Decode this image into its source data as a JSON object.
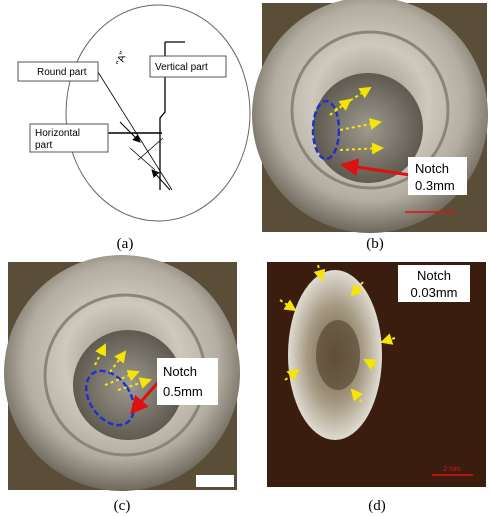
{
  "panels": [
    {
      "caption": "(a)",
      "labels": {
        "round_part": "Round part",
        "vertical_part": "Vertical part",
        "detail": "\"A\"",
        "horizontal_part": [
          "Horizontal",
          "part"
        ]
      }
    },
    {
      "caption": "(b)",
      "notch": [
        "Notch",
        "0.3mm"
      ]
    },
    {
      "caption": "(c)",
      "notch": [
        "Notch",
        "0.5mm"
      ]
    },
    {
      "caption": "(d)",
      "notch": [
        "Notch",
        "0.03mm"
      ],
      "scale_bar": "2 mm"
    }
  ]
}
